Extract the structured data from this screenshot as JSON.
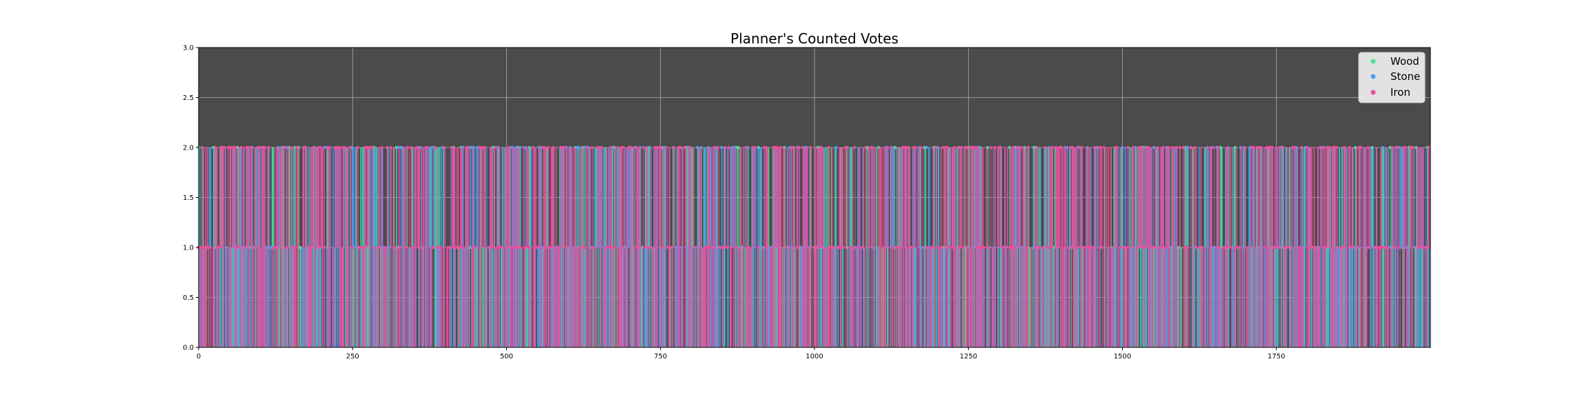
{
  "chart_data": {
    "type": "line",
    "title": "Planner's Counted Votes",
    "xlabel": "",
    "ylabel": "",
    "xlim": [
      0,
      2000
    ],
    "ylim": [
      0,
      3
    ],
    "x_ticks": [
      0,
      250,
      500,
      750,
      1000,
      1250,
      1500,
      1750
    ],
    "x_tick_labels": [
      "0",
      "250",
      "500",
      "750",
      "1000",
      "1250",
      "1500",
      "1750"
    ],
    "y_ticks": [
      0,
      0.5,
      1,
      1.5,
      2,
      2.5,
      3
    ],
    "y_tick_labels": [
      "0.0",
      "0.5",
      "1.0",
      "1.5",
      "2.0",
      "2.5",
      "3.0"
    ],
    "grid": true,
    "legend_position": "top-right",
    "background": "#4b4b4b",
    "step_count": 2000,
    "value_levels": [
      0,
      1,
      2
    ],
    "series": [
      {
        "name": "Wood",
        "color": "#4be39b"
      },
      {
        "name": "Stone",
        "color": "#4f9ff0"
      },
      {
        "name": "Iron",
        "color": "#eb4f9b"
      }
    ]
  }
}
